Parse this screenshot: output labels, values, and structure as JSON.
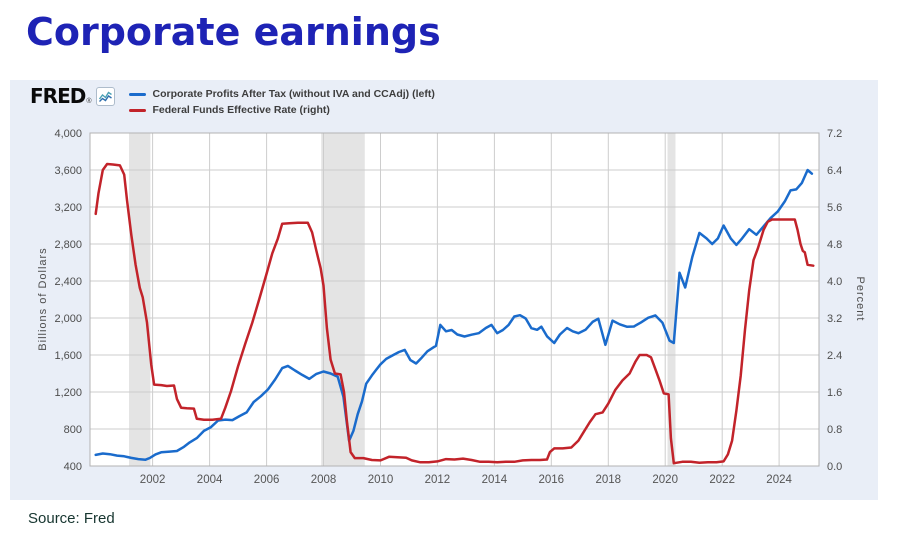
{
  "page": {
    "title": "Corporate earnings",
    "source": "Source: Fred"
  },
  "brand": {
    "logo": "FRED",
    "registered": "®",
    "icon": "fred-sparkline-icon"
  },
  "legend": [
    {
      "label": "Corporate Profits After Tax (without IVA and CCAdj) (left)",
      "color": "#1a6bcc"
    },
    {
      "label": "Federal Funds Effective Rate (right)",
      "color": "#c2232a"
    }
  ],
  "chart_data": {
    "type": "line",
    "title": "Corporate earnings",
    "x_domain": [
      1999.8,
      2025.4
    ],
    "x_ticks": [
      2002,
      2004,
      2006,
      2008,
      2010,
      2012,
      2014,
      2016,
      2018,
      2020,
      2022,
      2024
    ],
    "grid": true,
    "grid_color": "#cdcdcd",
    "frame_color": "#b3b3b3",
    "band_color": "#e4e4e4",
    "plot_bg": "#ffffff",
    "legend_position": "top-left",
    "left_axis": {
      "label": "Billions of Dollars",
      "range": [
        400,
        4000
      ],
      "ticks": [
        "400",
        "800",
        "1,200",
        "1,600",
        "2,000",
        "2,400",
        "2,800",
        "3,200",
        "3,600",
        "4,000"
      ]
    },
    "right_axis": {
      "label": "Percent",
      "range": [
        0,
        7.2
      ],
      "ticks": [
        "0.0",
        "0.8",
        "1.6",
        "2.4",
        "3.2",
        "4.0",
        "4.8",
        "5.6",
        "6.4",
        "7.2"
      ]
    },
    "recession_bands": [
      [
        2001.17,
        2001.92
      ],
      [
        2007.92,
        2009.45
      ],
      [
        2020.08,
        2020.36
      ]
    ],
    "series": [
      {
        "name": "Corporate Profits After Tax (without IVA and CCAdj) (left)",
        "axis": "left",
        "color": "#1a6bcc",
        "data_name": "corporate-profits-line",
        "points": [
          [
            2000.0,
            520
          ],
          [
            2000.25,
            535
          ],
          [
            2000.5,
            528
          ],
          [
            2000.75,
            512
          ],
          [
            2001.0,
            505
          ],
          [
            2001.25,
            488
          ],
          [
            2001.5,
            475
          ],
          [
            2001.75,
            468
          ],
          [
            2001.9,
            486
          ],
          [
            2002.1,
            525
          ],
          [
            2002.3,
            548
          ],
          [
            2002.6,
            556
          ],
          [
            2002.85,
            562
          ],
          [
            2003.1,
            608
          ],
          [
            2003.3,
            655
          ],
          [
            2003.55,
            702
          ],
          [
            2003.8,
            780
          ],
          [
            2004.05,
            820
          ],
          [
            2004.3,
            892
          ],
          [
            2004.55,
            902
          ],
          [
            2004.8,
            896
          ],
          [
            2005.05,
            940
          ],
          [
            2005.3,
            980
          ],
          [
            2005.55,
            1092
          ],
          [
            2005.8,
            1155
          ],
          [
            2006.05,
            1228
          ],
          [
            2006.3,
            1335
          ],
          [
            2006.55,
            1458
          ],
          [
            2006.75,
            1482
          ],
          [
            2007.0,
            1432
          ],
          [
            2007.25,
            1385
          ],
          [
            2007.5,
            1342
          ],
          [
            2007.75,
            1396
          ],
          [
            2008.0,
            1422
          ],
          [
            2008.25,
            1400
          ],
          [
            2008.5,
            1365
          ],
          [
            2008.7,
            1150
          ],
          [
            2008.9,
            672
          ],
          [
            2009.05,
            780
          ],
          [
            2009.2,
            960
          ],
          [
            2009.35,
            1100
          ],
          [
            2009.5,
            1290
          ],
          [
            2009.7,
            1380
          ],
          [
            2009.85,
            1440
          ],
          [
            2010.0,
            1500
          ],
          [
            2010.2,
            1558
          ],
          [
            2010.45,
            1600
          ],
          [
            2010.65,
            1632
          ],
          [
            2010.85,
            1655
          ],
          [
            2011.05,
            1545
          ],
          [
            2011.25,
            1508
          ],
          [
            2011.45,
            1572
          ],
          [
            2011.65,
            1640
          ],
          [
            2011.85,
            1680
          ],
          [
            2011.95,
            1700
          ],
          [
            2012.1,
            1925
          ],
          [
            2012.3,
            1856
          ],
          [
            2012.5,
            1870
          ],
          [
            2012.7,
            1822
          ],
          [
            2012.95,
            1800
          ],
          [
            2013.2,
            1820
          ],
          [
            2013.45,
            1836
          ],
          [
            2013.7,
            1892
          ],
          [
            2013.9,
            1925
          ],
          [
            2014.1,
            1836
          ],
          [
            2014.3,
            1870
          ],
          [
            2014.5,
            1925
          ],
          [
            2014.7,
            2016
          ],
          [
            2014.9,
            2030
          ],
          [
            2015.1,
            1995
          ],
          [
            2015.3,
            1890
          ],
          [
            2015.5,
            1872
          ],
          [
            2015.65,
            1906
          ],
          [
            2015.85,
            1802
          ],
          [
            2016.1,
            1730
          ],
          [
            2016.3,
            1822
          ],
          [
            2016.55,
            1892
          ],
          [
            2016.75,
            1856
          ],
          [
            2016.95,
            1836
          ],
          [
            2017.2,
            1872
          ],
          [
            2017.45,
            1958
          ],
          [
            2017.65,
            1992
          ],
          [
            2017.9,
            1710
          ],
          [
            2018.15,
            1972
          ],
          [
            2018.4,
            1932
          ],
          [
            2018.65,
            1906
          ],
          [
            2018.9,
            1908
          ],
          [
            2019.15,
            1952
          ],
          [
            2019.4,
            2002
          ],
          [
            2019.65,
            2028
          ],
          [
            2019.9,
            1950
          ],
          [
            2020.15,
            1756
          ],
          [
            2020.3,
            1730
          ],
          [
            2020.5,
            2490
          ],
          [
            2020.7,
            2330
          ],
          [
            2020.95,
            2660
          ],
          [
            2021.2,
            2920
          ],
          [
            2021.45,
            2860
          ],
          [
            2021.65,
            2800
          ],
          [
            2021.85,
            2860
          ],
          [
            2022.05,
            3000
          ],
          [
            2022.3,
            2860
          ],
          [
            2022.5,
            2790
          ],
          [
            2022.7,
            2860
          ],
          [
            2022.95,
            2960
          ],
          [
            2023.2,
            2900
          ],
          [
            2023.45,
            2990
          ],
          [
            2023.7,
            3080
          ],
          [
            2023.95,
            3150
          ],
          [
            2024.2,
            3260
          ],
          [
            2024.4,
            3380
          ],
          [
            2024.6,
            3390
          ],
          [
            2024.8,
            3460
          ],
          [
            2025.0,
            3600
          ],
          [
            2025.15,
            3560
          ]
        ]
      },
      {
        "name": "Federal Funds Effective Rate (right)",
        "axis": "right",
        "color": "#c2232a",
        "data_name": "fed-funds-line",
        "points": [
          [
            2000.0,
            5.45
          ],
          [
            2000.1,
            5.9
          ],
          [
            2000.25,
            6.4
          ],
          [
            2000.4,
            6.53
          ],
          [
            2000.6,
            6.52
          ],
          [
            2000.85,
            6.5
          ],
          [
            2001.0,
            6.3
          ],
          [
            2001.1,
            5.75
          ],
          [
            2001.25,
            5.0
          ],
          [
            2001.4,
            4.35
          ],
          [
            2001.55,
            3.85
          ],
          [
            2001.65,
            3.65
          ],
          [
            2001.8,
            3.1
          ],
          [
            2001.95,
            2.2
          ],
          [
            2002.05,
            1.76
          ],
          [
            2002.3,
            1.75
          ],
          [
            2002.5,
            1.73
          ],
          [
            2002.75,
            1.74
          ],
          [
            2002.85,
            1.45
          ],
          [
            2003.0,
            1.26
          ],
          [
            2003.2,
            1.25
          ],
          [
            2003.45,
            1.24
          ],
          [
            2003.55,
            1.02
          ],
          [
            2003.8,
            1.0
          ],
          [
            2004.1,
            1.0
          ],
          [
            2004.4,
            1.02
          ],
          [
            2004.55,
            1.26
          ],
          [
            2004.75,
            1.62
          ],
          [
            2005.0,
            2.16
          ],
          [
            2005.25,
            2.64
          ],
          [
            2005.5,
            3.1
          ],
          [
            2005.75,
            3.62
          ],
          [
            2006.0,
            4.16
          ],
          [
            2006.2,
            4.6
          ],
          [
            2006.4,
            4.92
          ],
          [
            2006.55,
            5.24
          ],
          [
            2006.8,
            5.25
          ],
          [
            2007.1,
            5.26
          ],
          [
            2007.45,
            5.26
          ],
          [
            2007.6,
            5.05
          ],
          [
            2007.75,
            4.65
          ],
          [
            2007.9,
            4.27
          ],
          [
            2008.0,
            3.9
          ],
          [
            2008.12,
            2.98
          ],
          [
            2008.25,
            2.3
          ],
          [
            2008.4,
            2.0
          ],
          [
            2008.6,
            1.98
          ],
          [
            2008.72,
            1.6
          ],
          [
            2008.82,
            0.97
          ],
          [
            2008.95,
            0.3
          ],
          [
            2009.1,
            0.17
          ],
          [
            2009.4,
            0.17
          ],
          [
            2009.7,
            0.13
          ],
          [
            2010.0,
            0.12
          ],
          [
            2010.3,
            0.2
          ],
          [
            2010.6,
            0.19
          ],
          [
            2010.9,
            0.18
          ],
          [
            2011.1,
            0.12
          ],
          [
            2011.4,
            0.08
          ],
          [
            2011.7,
            0.08
          ],
          [
            2012.0,
            0.1
          ],
          [
            2012.3,
            0.15
          ],
          [
            2012.6,
            0.14
          ],
          [
            2012.9,
            0.16
          ],
          [
            2013.2,
            0.13
          ],
          [
            2013.5,
            0.09
          ],
          [
            2013.8,
            0.09
          ],
          [
            2014.1,
            0.08
          ],
          [
            2014.4,
            0.09
          ],
          [
            2014.7,
            0.09
          ],
          [
            2015.0,
            0.12
          ],
          [
            2015.3,
            0.13
          ],
          [
            2015.6,
            0.13
          ],
          [
            2015.85,
            0.14
          ],
          [
            2015.95,
            0.3
          ],
          [
            2016.1,
            0.38
          ],
          [
            2016.4,
            0.38
          ],
          [
            2016.7,
            0.4
          ],
          [
            2016.95,
            0.55
          ],
          [
            2017.15,
            0.75
          ],
          [
            2017.35,
            0.95
          ],
          [
            2017.55,
            1.12
          ],
          [
            2017.8,
            1.16
          ],
          [
            2018.0,
            1.35
          ],
          [
            2018.25,
            1.65
          ],
          [
            2018.5,
            1.85
          ],
          [
            2018.75,
            2.0
          ],
          [
            2018.95,
            2.25
          ],
          [
            2019.1,
            2.4
          ],
          [
            2019.35,
            2.4
          ],
          [
            2019.5,
            2.35
          ],
          [
            2019.65,
            2.1
          ],
          [
            2019.8,
            1.85
          ],
          [
            2019.95,
            1.57
          ],
          [
            2020.12,
            1.55
          ],
          [
            2020.2,
            0.6
          ],
          [
            2020.3,
            0.06
          ],
          [
            2020.6,
            0.09
          ],
          [
            2020.9,
            0.09
          ],
          [
            2021.2,
            0.07
          ],
          [
            2021.5,
            0.08
          ],
          [
            2021.8,
            0.08
          ],
          [
            2022.05,
            0.1
          ],
          [
            2022.2,
            0.25
          ],
          [
            2022.35,
            0.55
          ],
          [
            2022.5,
            1.2
          ],
          [
            2022.65,
            1.95
          ],
          [
            2022.8,
            2.95
          ],
          [
            2022.95,
            3.8
          ],
          [
            2023.1,
            4.45
          ],
          [
            2023.25,
            4.7
          ],
          [
            2023.45,
            5.1
          ],
          [
            2023.6,
            5.28
          ],
          [
            2023.75,
            5.33
          ],
          [
            2024.0,
            5.33
          ],
          [
            2024.3,
            5.33
          ],
          [
            2024.55,
            5.33
          ],
          [
            2024.65,
            5.1
          ],
          [
            2024.75,
            4.8
          ],
          [
            2024.83,
            4.65
          ],
          [
            2024.9,
            4.62
          ],
          [
            2025.0,
            4.35
          ],
          [
            2025.2,
            4.33
          ]
        ]
      }
    ]
  }
}
